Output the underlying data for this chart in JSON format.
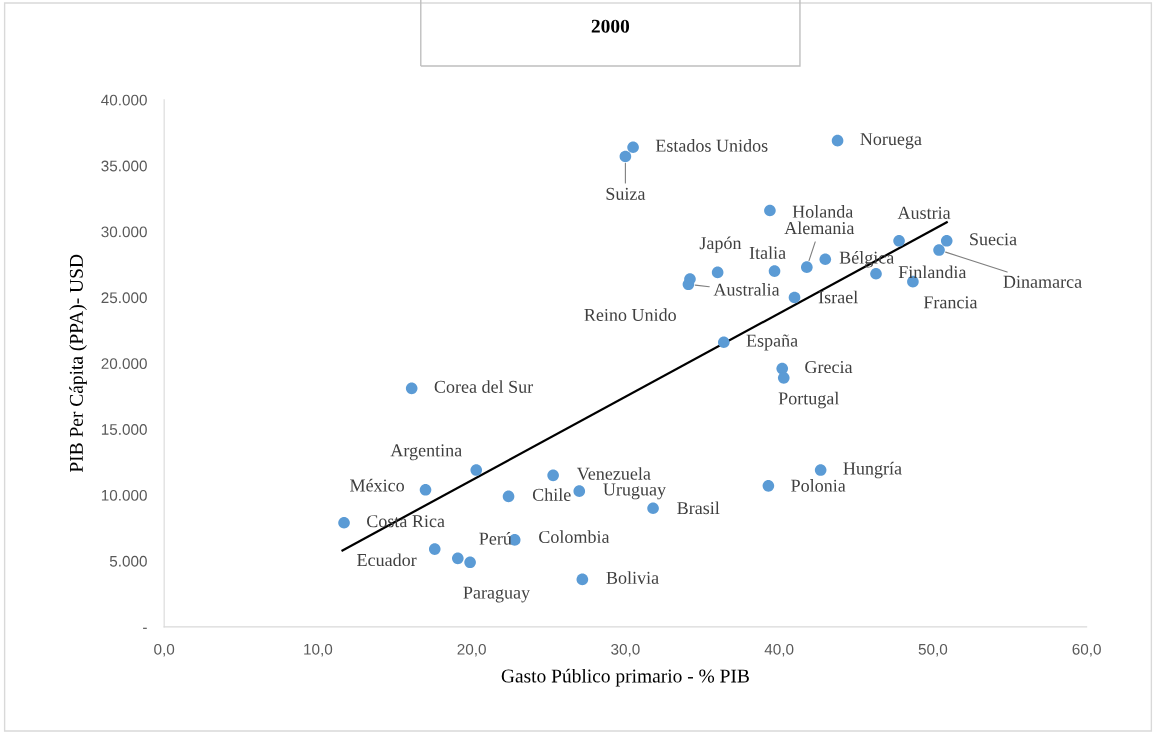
{
  "chart_data": {
    "type": "scatter",
    "title": "2000",
    "xlabel": "Gasto Público primario - % PIB",
    "ylabel": "PIB Per Cápita (PPA)- USD",
    "xlim": [
      0,
      60
    ],
    "ylim": [
      0,
      40000
    ],
    "xticks": [
      {
        "value": 0,
        "label": "0,0"
      },
      {
        "value": 10,
        "label": "10,0"
      },
      {
        "value": 20,
        "label": "20,0"
      },
      {
        "value": 30,
        "label": "30,0"
      },
      {
        "value": 40,
        "label": "40,0"
      },
      {
        "value": 50,
        "label": "50,0"
      },
      {
        "value": 60,
        "label": "60,0"
      }
    ],
    "yticks": [
      {
        "value": 0,
        "label": "-"
      },
      {
        "value": 5000,
        "label": "5.000"
      },
      {
        "value": 10000,
        "label": "10.000"
      },
      {
        "value": 15000,
        "label": "15.000"
      },
      {
        "value": 20000,
        "label": "20.000"
      },
      {
        "value": 25000,
        "label": "25.000"
      },
      {
        "value": 30000,
        "label": "30.000"
      },
      {
        "value": 35000,
        "label": "35.000"
      },
      {
        "value": 40000,
        "label": "40.000"
      }
    ],
    "grid": false,
    "legend": false,
    "marker": "circle",
    "series": [
      {
        "color": "#5b9bd5",
        "x": [
          43.8,
          30.5,
          30.0,
          39.4,
          47.8,
          50.9,
          50.4,
          41.8,
          43.0,
          39.7,
          36.0,
          34.2,
          34.1,
          46.3,
          48.7,
          41.0,
          36.4,
          40.2,
          40.3,
          16.1,
          20.3,
          42.7,
          25.3,
          17.0,
          22.4,
          27.0,
          39.3,
          31.8,
          11.7,
          22.8,
          17.6,
          19.1,
          19.9,
          27.2
        ],
        "values": [
          36900,
          36400,
          35700,
          31600,
          29300,
          29300,
          28600,
          27300,
          27900,
          27000,
          26900,
          26400,
          26000,
          26800,
          26200,
          25000,
          21600,
          19600,
          18900,
          18100,
          11900,
          11900,
          11500,
          10400,
          9900,
          10300,
          10700,
          9000,
          7900,
          6600,
          5900,
          5200,
          4900,
          3600
        ]
      },
      {
        "type": "line",
        "color": "#000000",
        "x": [
          11.6,
          50.9
        ],
        "values": [
          5800,
          30700
        ],
        "line_style": "solid",
        "marker": "none"
      }
    ],
    "annotations": [
      {
        "text": "Noruega",
        "x": 43.8,
        "y": 36900
      },
      {
        "text": "Estados Unidos",
        "x": 30.5,
        "y": 36400
      },
      {
        "text": "Suiza",
        "x": 30.0,
        "y": 35700
      },
      {
        "text": "Holanda",
        "x": 39.4,
        "y": 31600
      },
      {
        "text": "Austria",
        "x": 47.8,
        "y": 29300
      },
      {
        "text": "Suecia",
        "x": 50.9,
        "y": 29300
      },
      {
        "text": "Dinamarca",
        "x": 50.4,
        "y": 28600
      },
      {
        "text": "Alemania",
        "x": 41.8,
        "y": 27300
      },
      {
        "text": "Bélgica",
        "x": 43.0,
        "y": 27900
      },
      {
        "text": "Italia",
        "x": 39.7,
        "y": 27000
      },
      {
        "text": "Japón",
        "x": 36.0,
        "y": 26900
      },
      {
        "text": "Reino Unido",
        "x": 34.2,
        "y": 26400
      },
      {
        "text": "Australia",
        "x": 34.1,
        "y": 26000
      },
      {
        "text": "Finlandia",
        "x": 46.3,
        "y": 26800
      },
      {
        "text": "Francia",
        "x": 48.7,
        "y": 26200
      },
      {
        "text": "Israel",
        "x": 41.0,
        "y": 25000
      },
      {
        "text": "España",
        "x": 36.4,
        "y": 21600
      },
      {
        "text": "Grecia",
        "x": 40.2,
        "y": 19600
      },
      {
        "text": "Portugal",
        "x": 40.3,
        "y": 18900
      },
      {
        "text": "Corea del Sur",
        "x": 16.1,
        "y": 18100
      },
      {
        "text": "Argentina",
        "x": 20.3,
        "y": 11900
      },
      {
        "text": "Hungría",
        "x": 42.7,
        "y": 11900
      },
      {
        "text": "Venezuela",
        "x": 25.3,
        "y": 11500
      },
      {
        "text": "México",
        "x": 17.0,
        "y": 10400
      },
      {
        "text": "Chile",
        "x": 22.4,
        "y": 9900
      },
      {
        "text": "Uruguay",
        "x": 27.0,
        "y": 10300
      },
      {
        "text": "Polonia",
        "x": 39.3,
        "y": 10700
      },
      {
        "text": "Brasil",
        "x": 31.8,
        "y": 9000
      },
      {
        "text": "Costa Rica",
        "x": 11.7,
        "y": 7900
      },
      {
        "text": "Colombia",
        "x": 22.8,
        "y": 6600
      },
      {
        "text": "Ecuador",
        "x": 17.6,
        "y": 5900
      },
      {
        "text": "Perú",
        "x": 19.1,
        "y": 5200
      },
      {
        "text": "Paraguay",
        "x": 19.9,
        "y": 4900
      },
      {
        "text": "Bolivia",
        "x": 27.2,
        "y": 3600
      }
    ]
  }
}
